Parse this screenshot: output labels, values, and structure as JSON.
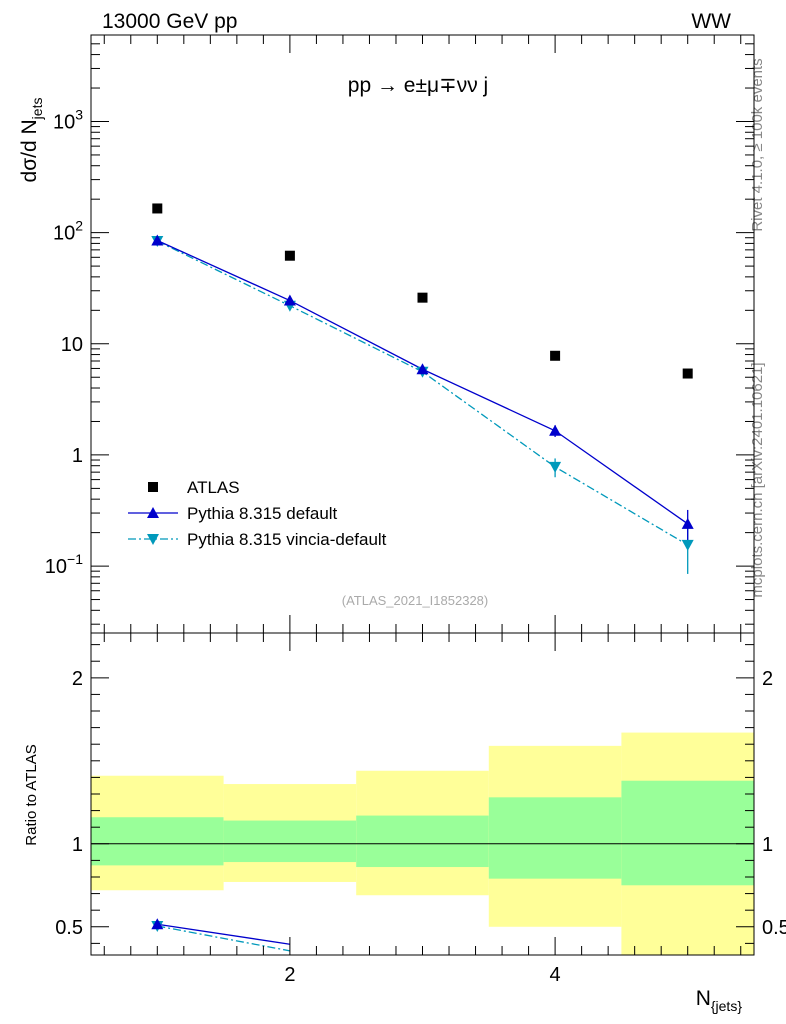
{
  "header": {
    "left": "13000 GeV pp",
    "right": "WW"
  },
  "process_label": "pp → e±μ∓νν j",
  "side_labels": {
    "rivet": "Rivet 4.1.0, ≥ 100k events",
    "mcplots": "mcplots.cern.ch [arXiv:2401.10621]"
  },
  "analysis_id": "(ATLAS_2021_I1852328)",
  "colors": {
    "atlas": "#000000",
    "pythia_default": "#0000cc",
    "pythia_vincia": "#0099bb",
    "band_inner": "#99ff99",
    "band_outer": "#ffff99"
  },
  "chart_data": [
    {
      "type": "scatter",
      "role": "main",
      "yscale": "log",
      "ylabel": "dσ/d N{jets}",
      "xlim": [
        0.5,
        5.5
      ],
      "ylim": [
        0.025,
        6000
      ],
      "yticks": [
        {
          "value": 0.1,
          "base": "10",
          "exp": "−1"
        },
        {
          "value": 1,
          "label": "1"
        },
        {
          "value": 10,
          "label": "10"
        },
        {
          "value": 100,
          "base": "10",
          "exp": "2"
        },
        {
          "value": 1000,
          "base": "10",
          "exp": "3"
        }
      ],
      "series": [
        {
          "name": "ATLAS",
          "marker": "square",
          "x": [
            1,
            2,
            3,
            4,
            5
          ],
          "y": [
            165,
            62,
            26,
            7.8,
            5.4
          ]
        },
        {
          "name": "Pythia 8.315 default",
          "marker": "triangle-up",
          "line": "solid",
          "x": [
            1,
            2,
            3,
            4,
            5
          ],
          "y": [
            85,
            24.5,
            5.9,
            1.65,
            0.24
          ],
          "yerr": [
            2,
            0.6,
            0.2,
            0.2,
            0.08
          ]
        },
        {
          "name": "Pythia 8.315 vincia-default",
          "marker": "triangle-down",
          "line": "dashdot",
          "x": [
            1,
            2,
            3,
            4,
            5
          ],
          "y": [
            84,
            22,
            5.6,
            0.78,
            0.155
          ],
          "yerr": [
            2,
            0.6,
            0.2,
            0.15,
            0.07
          ]
        }
      ]
    },
    {
      "type": "area",
      "role": "ratio",
      "ylabel": "Ratio to ATLAS",
      "xlabel": "N{jets}",
      "xlim": [
        0.5,
        5.5
      ],
      "ylim": [
        0.33,
        2.27
      ],
      "xticks": [
        {
          "value": 2,
          "label": "2"
        },
        {
          "value": 4,
          "label": "4"
        }
      ],
      "yticks": [
        {
          "value": 0.5,
          "label": "0.5"
        },
        {
          "value": 1,
          "label": "1"
        },
        {
          "value": 2,
          "label": "2"
        }
      ],
      "bands": [
        {
          "x0": 0.5,
          "x1": 1.5,
          "inner": [
            0.87,
            1.16
          ],
          "outer": [
            0.72,
            1.41
          ]
        },
        {
          "x0": 1.5,
          "x1": 2.5,
          "inner": [
            0.89,
            1.14
          ],
          "outer": [
            0.77,
            1.36
          ]
        },
        {
          "x0": 2.5,
          "x1": 3.5,
          "inner": [
            0.86,
            1.17
          ],
          "outer": [
            0.69,
            1.44
          ]
        },
        {
          "x0": 3.5,
          "x1": 4.5,
          "inner": [
            0.79,
            1.28
          ],
          "outer": [
            0.5,
            1.59
          ]
        },
        {
          "x0": 4.5,
          "x1": 5.5,
          "inner": [
            0.75,
            1.38
          ],
          "outer": [
            0.33,
            1.67
          ]
        }
      ],
      "series": [
        {
          "name": "Pythia 8.315 default",
          "x": [
            1,
            2
          ],
          "y": [
            0.515,
            0.395
          ]
        },
        {
          "name": "Pythia 8.315 vincia-default",
          "x": [
            1,
            2
          ],
          "y": [
            0.505,
            0.355
          ]
        }
      ]
    }
  ]
}
